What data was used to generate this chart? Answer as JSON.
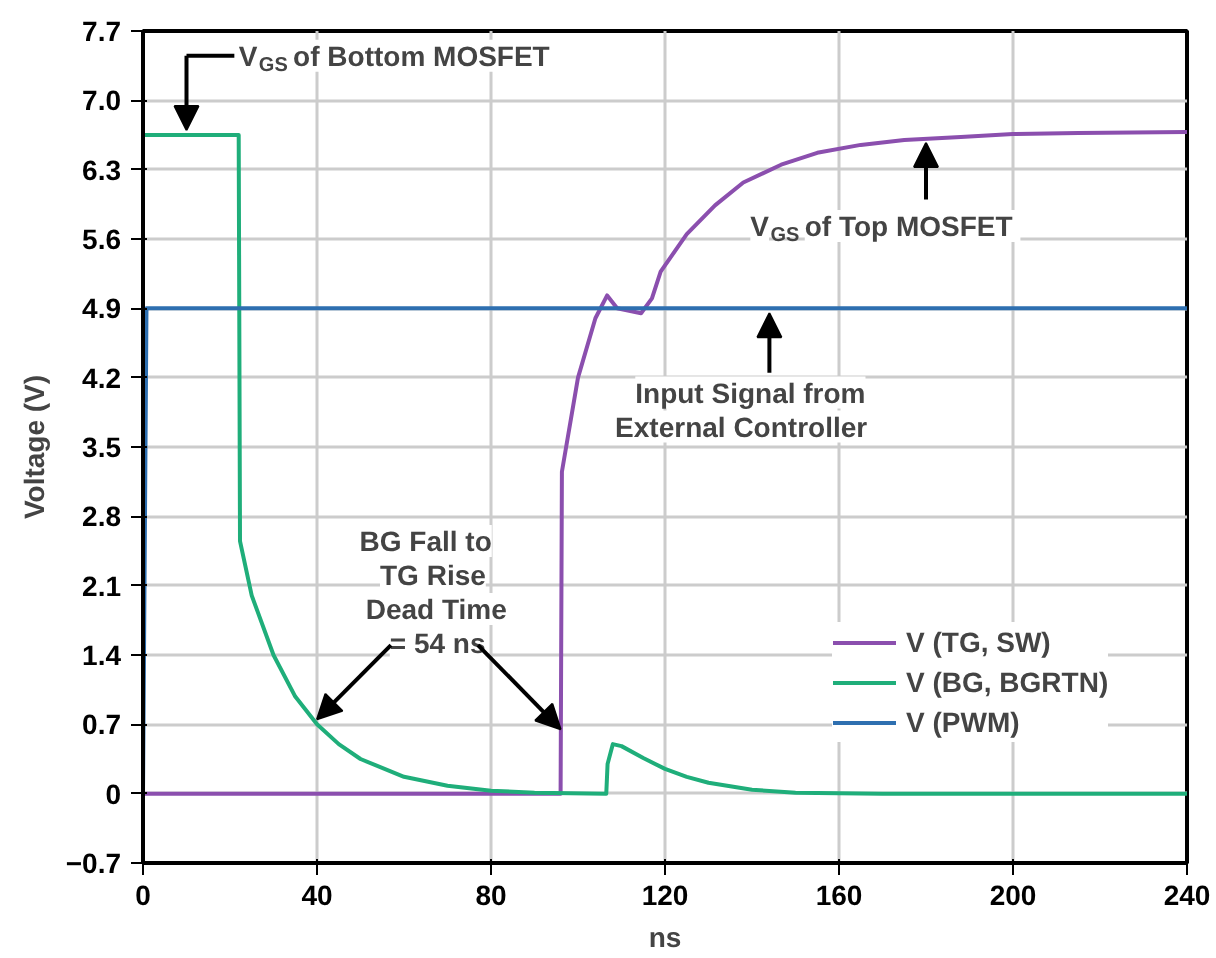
{
  "chart_data": {
    "type": "line",
    "xlabel": "ns",
    "ylabel": "Voltage (V)",
    "xlim": [
      0,
      240
    ],
    "ylim": [
      -0.7,
      7.7
    ],
    "xticks": [
      0,
      40,
      80,
      120,
      160,
      200,
      240
    ],
    "yticks": [
      {
        "value": -0.7,
        "label": "−0.7"
      },
      0,
      0.7,
      1.4,
      2.1,
      2.8,
      3.5,
      4.2,
      4.9,
      5.6,
      6.3,
      {
        "value": 7,
        "label": "7.0"
      },
      7.7
    ],
    "grid": true,
    "legend": "right",
    "line_style": "solid",
    "series": [
      {
        "name": "V (TG, SW)",
        "color": "#8b4fae",
        "x": [
          0,
          96,
          96.3,
          100,
          104,
          106.7,
          109,
          114.5,
          117,
          119,
          125,
          131.5,
          138,
          146.7,
          155,
          165,
          175,
          188,
          200,
          215,
          240
        ],
        "values": [
          0,
          0,
          3.25,
          4.2,
          4.8,
          5.03,
          4.9,
          4.85,
          5.0,
          5.27,
          5.65,
          5.94,
          6.17,
          6.35,
          6.47,
          6.55,
          6.6,
          6.63,
          6.66,
          6.67,
          6.68
        ]
      },
      {
        "name": "V (BG, BGRTN)",
        "color": "#1fae7a",
        "x": [
          0,
          22,
          22.3,
          25,
          30,
          35,
          40,
          45,
          50,
          60,
          70,
          80,
          90,
          106.5,
          106.8,
          108,
          110,
          115,
          120,
          125,
          130,
          140,
          150,
          170,
          240
        ],
        "values": [
          6.65,
          6.65,
          2.55,
          2.0,
          1.4,
          0.98,
          0.7,
          0.5,
          0.35,
          0.17,
          0.08,
          0.03,
          0.01,
          0.0,
          0.3,
          0.5,
          0.48,
          0.36,
          0.25,
          0.17,
          0.11,
          0.04,
          0.01,
          0,
          0
        ]
      },
      {
        "name": "V (PWM)",
        "color": "#2e6fb0",
        "x": [
          0,
          0.8,
          240
        ],
        "values": [
          0,
          4.9,
          4.9
        ]
      }
    ],
    "annotations": [
      {
        "text": "V$_{GS}$ of Bottom MOSFET",
        "x": 10,
        "y": 6.65
      },
      {
        "text": "V$_{GS}$ of Top MOSFET",
        "x": 180,
        "y": 6.62
      },
      {
        "text": "Input Signal from\nExternal Controller",
        "x": 144,
        "y": 4.9
      },
      {
        "text": "BG Fall to\nTG Rise\nDead Time\n= 54 ns",
        "x": 40,
        "y": 0.7
      }
    ]
  }
}
